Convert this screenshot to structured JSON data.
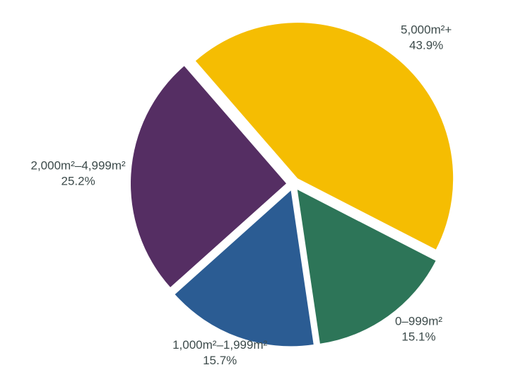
{
  "chart_data": {
    "type": "pie",
    "title": "",
    "slices": [
      {
        "label": "5,000m²+",
        "value": 43.9,
        "value_label": "43.9%",
        "color": "#F5BD02"
      },
      {
        "label": "0–999m²",
        "value": 15.1,
        "value_label": "15.1%",
        "color": "#2D7558"
      },
      {
        "label": "1,000m²–1,999m²",
        "value": 15.7,
        "value_label": "15.7%",
        "color": "#2B5C93"
      },
      {
        "label": "2,000m²–4,999m²",
        "value": 25.2,
        "value_label": "25.2%",
        "color": "#552E63"
      }
    ],
    "direction": "clockwise",
    "exploded": true,
    "legend": "none, labels outside slices"
  }
}
